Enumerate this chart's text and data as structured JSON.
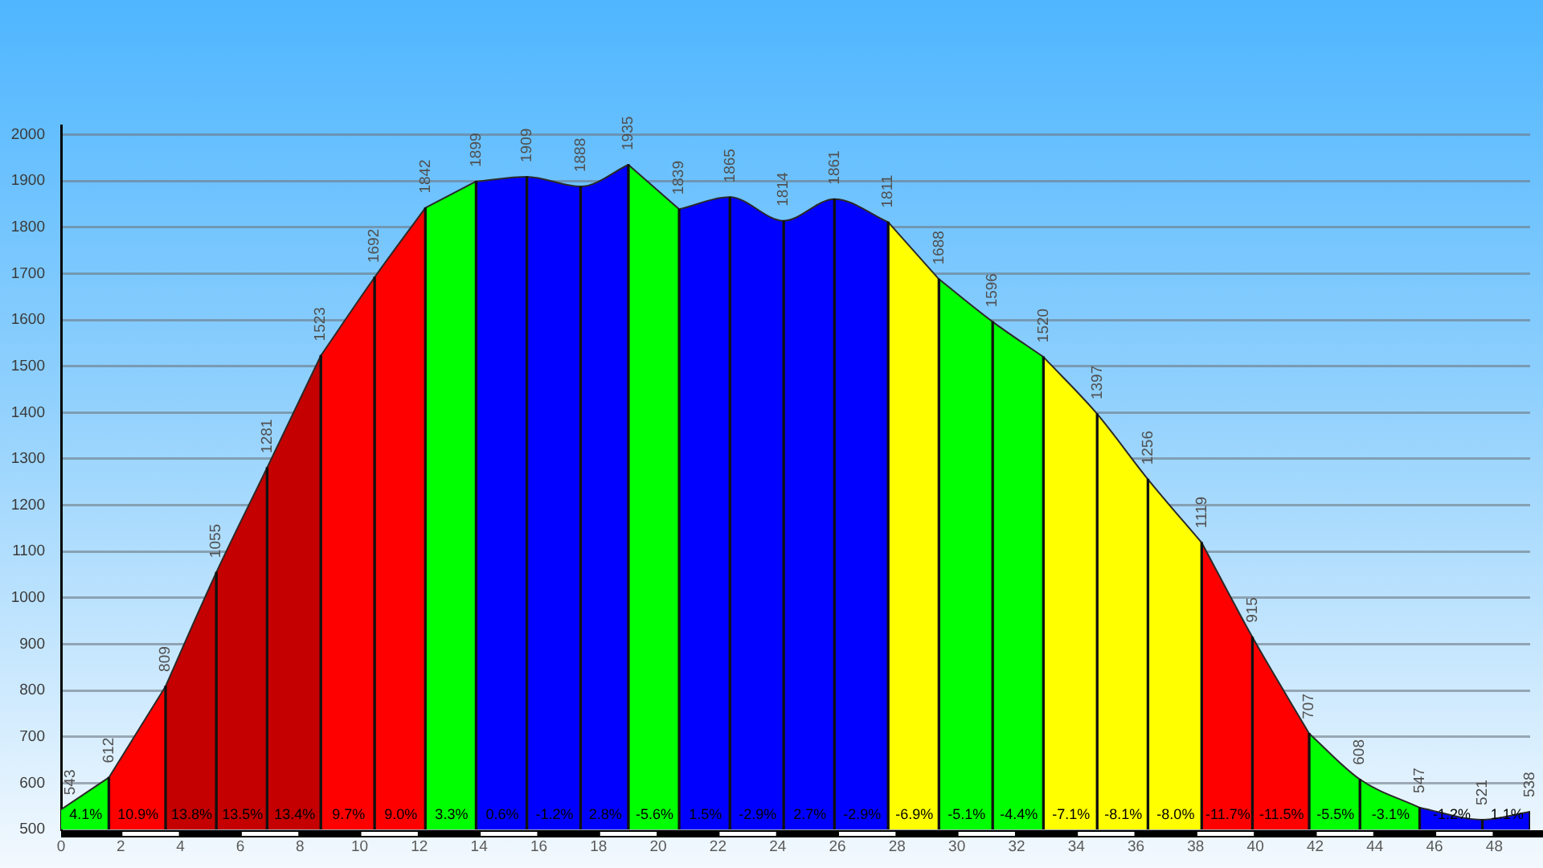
{
  "chart_data": {
    "type": "area",
    "series": [
      {
        "color": "#00ff00",
        "x": [
          0,
          1.6
        ],
        "values": [
          543,
          612
        ],
        "value_labels": [
          "543",
          null
        ]
      },
      {
        "color": "#ff0000",
        "x": [
          1.6,
          3.5
        ],
        "values": [
          612,
          809
        ],
        "value_labels": [
          "612",
          null
        ]
      },
      {
        "color": "#c40000",
        "x": [
          3.5,
          5.2,
          6.9,
          8.7
        ],
        "values": [
          809,
          1055,
          1281,
          1523
        ],
        "value_labels": [
          "809",
          "1055",
          "1281",
          null
        ]
      },
      {
        "color": "#ff0000",
        "x": [
          8.7,
          10.5,
          12.2
        ],
        "values": [
          1523,
          1692,
          1842
        ],
        "value_labels": [
          "1523",
          "1692",
          null
        ]
      },
      {
        "color": "#00ff00",
        "x": [
          12.2,
          13.9
        ],
        "values": [
          1842,
          1899
        ],
        "value_labels": [
          "1842",
          null
        ]
      },
      {
        "color": "#0000ff",
        "x": [
          13.9,
          15.6,
          17.4,
          19.0
        ],
        "values": [
          1899,
          1909,
          1888,
          1935
        ],
        "value_labels": [
          "1899",
          "1909",
          "1888",
          null
        ]
      },
      {
        "color": "#00ff00",
        "x": [
          19.0,
          20.7
        ],
        "values": [
          1935,
          1839
        ],
        "value_labels": [
          "1935",
          null
        ]
      },
      {
        "color": "#0000ff",
        "x": [
          20.7,
          22.4,
          24.2,
          25.9,
          27.7
        ],
        "values": [
          1839,
          1865,
          1814,
          1861,
          1811
        ],
        "value_labels": [
          "1839",
          "1865",
          "1814",
          "1861",
          null
        ]
      },
      {
        "color": "#ffff00",
        "x": [
          27.7,
          29.4
        ],
        "values": [
          1811,
          1688
        ],
        "value_labels": [
          "1811",
          null
        ]
      },
      {
        "color": "#00ff00",
        "x": [
          29.4,
          31.2,
          32.9
        ],
        "values": [
          1688,
          1596,
          1520
        ],
        "value_labels": [
          "1688",
          "1596",
          null
        ]
      },
      {
        "color": "#ffff00",
        "x": [
          32.9,
          34.7,
          36.4,
          38.2
        ],
        "values": [
          1520,
          1397,
          1256,
          1119
        ],
        "value_labels": [
          "1520",
          "1397",
          "1256",
          null
        ]
      },
      {
        "color": "#ff0000",
        "x": [
          38.2,
          39.9,
          41.8
        ],
        "values": [
          1119,
          915,
          707
        ],
        "value_labels": [
          "1119",
          "915",
          null
        ]
      },
      {
        "color": "#00ff00",
        "x": [
          41.8,
          43.5,
          45.5
        ],
        "values": [
          707,
          608,
          547
        ],
        "value_labels": [
          "707",
          "608",
          null
        ]
      },
      {
        "color": "#0000ff",
        "x": [
          45.5,
          47.6,
          49.2
        ],
        "values": [
          547,
          521,
          538
        ],
        "value_labels": [
          "547",
          "521",
          "538"
        ]
      },
      {
        "type": "bar",
        "color": "#111111",
        "x": [
          1.6,
          3.5,
          5.2,
          6.9,
          8.7,
          10.5,
          12.2,
          13.9,
          15.6,
          17.4,
          19.0,
          20.7,
          22.4,
          24.2,
          25.9,
          27.7,
          29.4,
          31.2,
          32.9,
          34.7,
          36.4,
          38.2,
          39.9,
          41.8,
          43.5,
          45.5,
          47.6,
          49.2
        ],
        "values": [
          612,
          809,
          1055,
          1281,
          1523,
          1692,
          1842,
          1899,
          1909,
          1888,
          1935,
          1839,
          1865,
          1814,
          1861,
          1811,
          1688,
          1596,
          1520,
          1397,
          1256,
          1119,
          915,
          707,
          608,
          547,
          521,
          538
        ]
      }
    ],
    "annotations": [
      "4.1%",
      "10.9%",
      "13.8%",
      "13.5%",
      "13.4%",
      "9.7%",
      "9.0%",
      "3.3%",
      "0.6%",
      "-1.2%",
      "2.8%",
      "-5.6%",
      "1.5%",
      "-2.9%",
      "2.7%",
      "-2.9%",
      "-6.9%",
      "-5.1%",
      "-4.4%",
      "-7.1%",
      "-8.1%",
      "-8.0%",
      "-11.7%",
      "-11.5%",
      "-5.5%",
      "-3.1%",
      "-1.2%",
      "1.1%"
    ],
    "xlim": [
      0,
      49.2
    ],
    "xticks": [
      0,
      2,
      4,
      6,
      8,
      10,
      12,
      14,
      16,
      18,
      20,
      22,
      24,
      26,
      28,
      30,
      32,
      34,
      36,
      38,
      40,
      42,
      44,
      46,
      48
    ],
    "ylim": [
      500,
      2020
    ],
    "yticks": [
      500,
      600,
      700,
      800,
      900,
      1000,
      1100,
      1200,
      1300,
      1400,
      1500,
      1600,
      1700,
      1800,
      1900,
      2000
    ],
    "grid": "y"
  }
}
